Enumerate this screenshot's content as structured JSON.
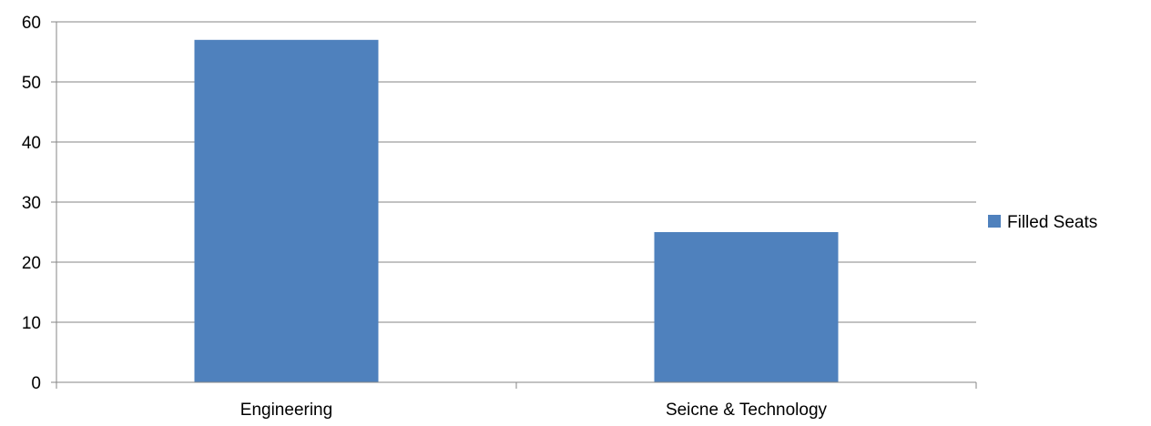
{
  "chart_data": {
    "type": "bar",
    "categories": [
      "Engineering",
      "Seicne & Technology"
    ],
    "series": [
      {
        "name": "Filled Seats",
        "values": [
          57,
          25
        ],
        "color": "#4F81BD"
      }
    ],
    "title": "",
    "xlabel": "",
    "ylabel": "",
    "ylim": [
      0,
      60
    ],
    "yticks": [
      "0",
      "10",
      "20",
      "30",
      "40",
      "50",
      "60"
    ],
    "grid": true,
    "legend_position": "right"
  }
}
